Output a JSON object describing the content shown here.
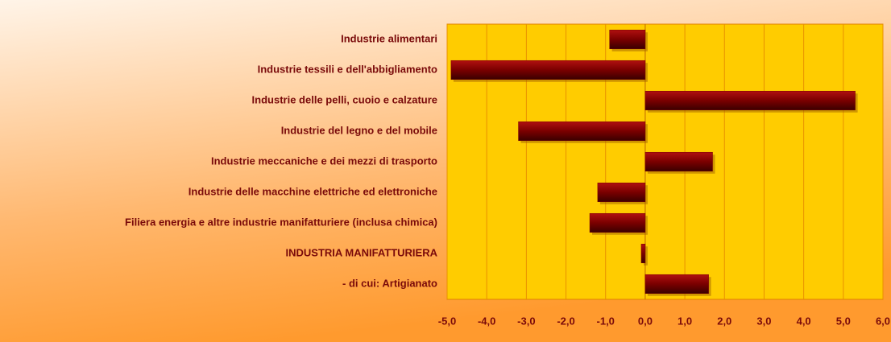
{
  "chart_data": {
    "type": "hbar",
    "categories": [
      "Industrie alimentari",
      "Industrie tessili e dell'abbigliamento",
      "Industrie delle pelli, cuoio e calzature",
      "Industrie del legno e del mobile",
      "Industrie meccaniche e dei mezzi di trasporto",
      "Industrie delle macchine elettriche ed elettroniche",
      "Filiera energia e altre industrie manifatturiere (inclusa chimica)",
      "INDUSTRIA MANIFATTURIERA",
      "- di cui: Artigianato"
    ],
    "values": [
      -0.9,
      -4.9,
      5.3,
      -3.2,
      1.7,
      -1.2,
      -1.4,
      -0.1,
      1.6
    ],
    "color": "#7a0000",
    "xlim": [
      -5,
      6
    ],
    "xticks": [
      {
        "value": -5,
        "label": "-5,0"
      },
      {
        "value": -4,
        "label": "-4,0"
      },
      {
        "value": -3,
        "label": "-3,0"
      },
      {
        "value": -2,
        "label": "-2,0"
      },
      {
        "value": -1,
        "label": "-1,0"
      },
      {
        "value": 0,
        "label": "0,0"
      },
      {
        "value": 1,
        "label": "1,0"
      },
      {
        "value": 2,
        "label": "2,0"
      },
      {
        "value": 3,
        "label": "3,0"
      },
      {
        "value": 4,
        "label": "4,0"
      },
      {
        "value": 5,
        "label": "5,0"
      },
      {
        "value": 6,
        "label": "6,0"
      }
    ],
    "grid": true
  }
}
